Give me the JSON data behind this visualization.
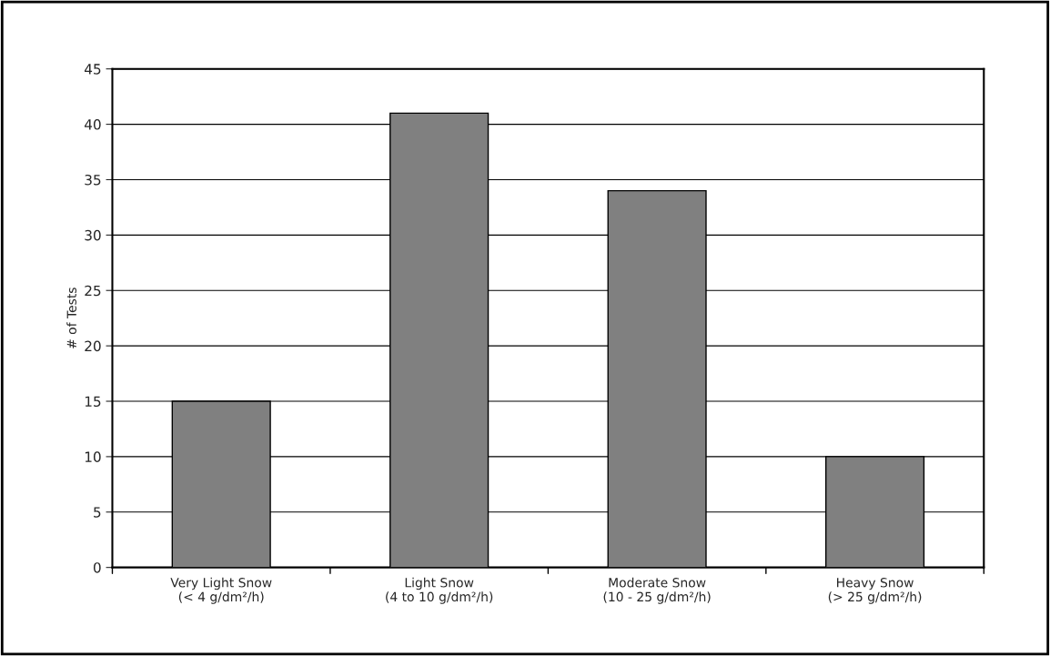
{
  "chart_data": {
    "type": "bar",
    "ylabel": "# of Tests",
    "categories": [
      "Very Light Snow\n(< 4 g/dm²/h)",
      "Light Snow\n(4 to 10 g/dm²/h)",
      "Moderate Snow\n(10 - 25 g/dm²/h)",
      "Heavy Snow\n(> 25 g/dm²/h)"
    ],
    "values": [
      15,
      41,
      34,
      10
    ],
    "color": "#808080",
    "ylim": [
      0,
      45
    ],
    "yticks": [
      0,
      5,
      10,
      15,
      20,
      25,
      30,
      35,
      40,
      45
    ],
    "grid": "y"
  }
}
